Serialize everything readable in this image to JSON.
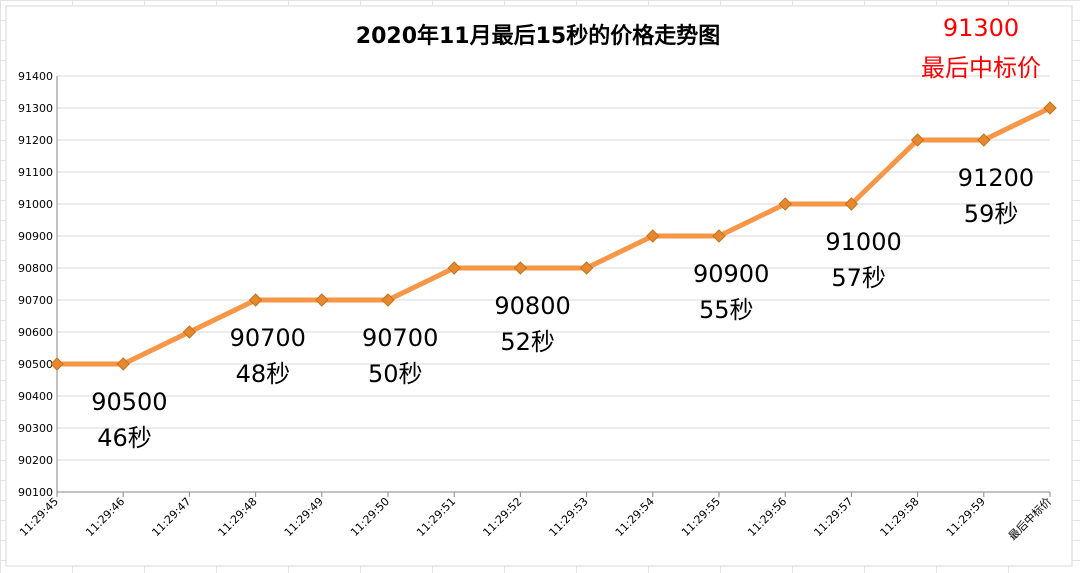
{
  "chart_data": {
    "type": "line",
    "title": "2020年11月最后15秒的价格走势图",
    "categories": [
      "11:29:45",
      "11:29:46",
      "11:29:47",
      "11:29:48",
      "11:29:49",
      "11:29:50",
      "11:29:51",
      "11:29:52",
      "11:29:53",
      "11:29:54",
      "11:29:55",
      "11:29:56",
      "11:29:57",
      "11:29:58",
      "11:29:59",
      "最后中标价"
    ],
    "series": [
      {
        "values": [
          90500,
          90500,
          90600,
          90700,
          90700,
          90700,
          90800,
          90800,
          90800,
          90900,
          90900,
          91000,
          91000,
          91200,
          91200,
          91300
        ]
      }
    ],
    "ylim": [
      90100,
      91400
    ],
    "ytick_step": 100,
    "yticks": [
      "90100",
      "90200",
      "90300",
      "90400",
      "90500",
      "90600",
      "90700",
      "90800",
      "90900",
      "91000",
      "91100",
      "91200",
      "91300",
      "91400"
    ],
    "grid": true,
    "line_color": "#f79646",
    "marker_color": "#e5892e",
    "annotations": [
      {
        "category": "11:29:46",
        "value": "90500",
        "sub": "46秒",
        "color": "#000000"
      },
      {
        "category": "11:29:48",
        "value": "90700",
        "sub": "48秒",
        "color": "#000000"
      },
      {
        "category": "11:29:50",
        "value": "90700",
        "sub": "50秒",
        "color": "#000000"
      },
      {
        "category": "11:29:52",
        "value": "90800",
        "sub": "52秒",
        "color": "#000000"
      },
      {
        "category": "11:29:55",
        "value": "90900",
        "sub": "55秒",
        "color": "#000000"
      },
      {
        "category": "11:29:57",
        "value": "91000",
        "sub": "57秒",
        "color": "#000000"
      },
      {
        "category": "11:29:59",
        "value": "91200",
        "sub": "59秒",
        "color": "#000000"
      },
      {
        "category": "最后中标价",
        "value": "91300",
        "sub": "最后中标价",
        "color": "#ff0000"
      }
    ]
  }
}
